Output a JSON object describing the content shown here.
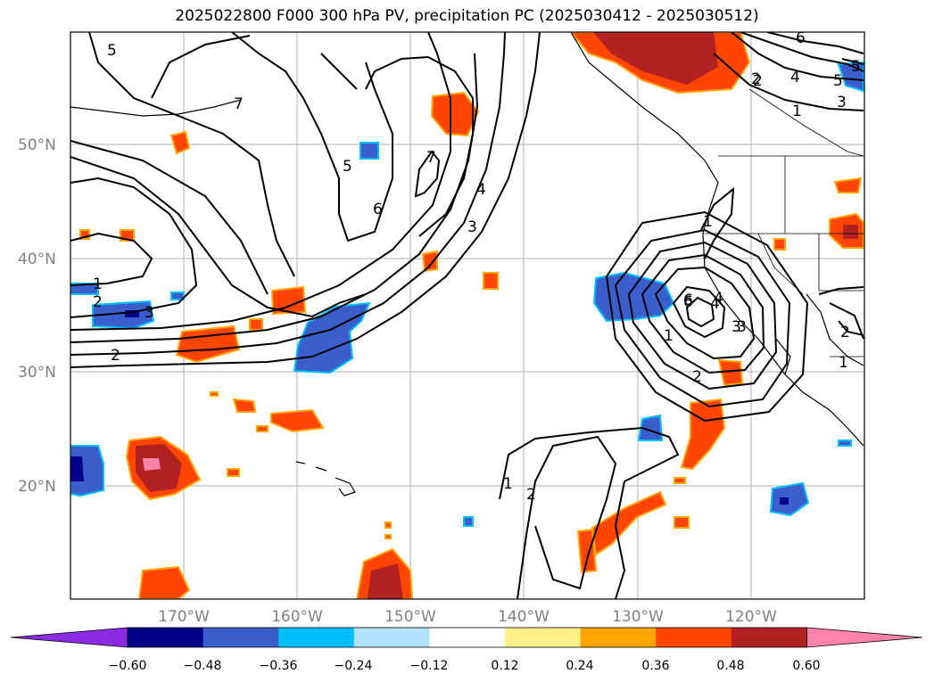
{
  "title": "2025022800 F000 300 hPa PV, precipitation PC (2025030412 - 2025030512)",
  "lat_labels": [
    "50°N",
    "40°N",
    "30°N",
    "20°N"
  ],
  "lon_labels": [
    "170°W",
    "160°W",
    "150°W",
    "140°W",
    "130°W",
    "120°W"
  ],
  "colorbar": {
    "colors": [
      "#8a2be2",
      "#00008b",
      "#3a5fcd",
      "#00bfff",
      "#b0e2ff",
      "#ffffff",
      "#fff08a",
      "#ffa500",
      "#ff4500",
      "#b22222",
      "#ff82ab"
    ],
    "ticks": [
      "−0.60",
      "−0.48",
      "−0.36",
      "−0.24",
      "−0.12",
      "0.12",
      "0.24",
      "0.36",
      "0.48",
      "0.60"
    ]
  },
  "pv_contour_labels": [
    "5",
    "7",
    "7",
    "5",
    "6",
    "4",
    "3",
    "1",
    "2",
    "3",
    "2",
    "6",
    "4",
    "3",
    "1",
    "6",
    "4",
    "5",
    "3",
    "2",
    "1",
    "2",
    "1",
    "2",
    "1",
    "2",
    "4",
    "5",
    "3",
    "1",
    "6",
    "2"
  ]
}
